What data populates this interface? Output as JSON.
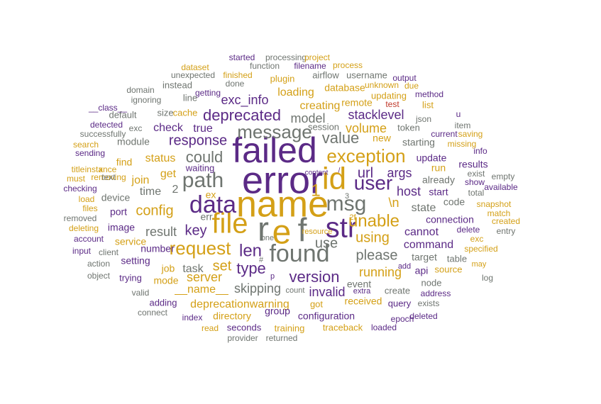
{
  "palette": {
    "purple": "#5b2a86",
    "gold": "#d4a017",
    "gray": "#6f7570",
    "red": "#c0392b"
  },
  "words": [
    {
      "text": "error",
      "color": "purple"
    },
    {
      "text": "failed",
      "color": "purple"
    },
    {
      "text": "name",
      "color": "gold"
    },
    {
      "text": "id",
      "color": "gold"
    },
    {
      "text": "file",
      "color": "gold"
    },
    {
      "text": "r",
      "color": "gray"
    },
    {
      "text": "e",
      "color": "gold"
    },
    {
      "text": "f",
      "color": "gray"
    },
    {
      "text": "str",
      "color": "purple"
    },
    {
      "text": "found",
      "color": "gray"
    },
    {
      "text": "data",
      "color": "purple"
    },
    {
      "text": "path",
      "color": "gray"
    },
    {
      "text": "msg",
      "color": "gray"
    },
    {
      "text": "user",
      "color": "purple"
    },
    {
      "text": "exception",
      "color": "gold"
    },
    {
      "text": "request",
      "color": "gold"
    },
    {
      "text": "message",
      "color": "gray"
    },
    {
      "text": "unable",
      "color": "gold"
    },
    {
      "text": "len",
      "color": "purple"
    },
    {
      "text": "1",
      "color": "gold"
    },
    {
      "text": "deprecated",
      "color": "purple"
    },
    {
      "text": "could",
      "color": "gray"
    },
    {
      "text": "response",
      "color": "purple"
    },
    {
      "text": "value",
      "color": "gray"
    },
    {
      "text": "url",
      "color": "purple"
    },
    {
      "text": "config",
      "color": "gold"
    },
    {
      "text": "key",
      "color": "purple"
    },
    {
      "text": "type",
      "color": "purple"
    },
    {
      "text": "version",
      "color": "purple"
    },
    {
      "text": "use",
      "color": "gray"
    },
    {
      "text": "set",
      "color": "gold"
    },
    {
      "text": "please",
      "color": "gray"
    },
    {
      "text": "using",
      "color": "gold"
    },
    {
      "text": "model",
      "color": "gray"
    },
    {
      "text": "volume",
      "color": "gold"
    },
    {
      "text": "stacklevel",
      "color": "purple"
    },
    {
      "text": "exc_info",
      "color": "purple"
    },
    {
      "text": "\\n",
      "color": "gold"
    },
    {
      "text": "host",
      "color": "purple"
    },
    {
      "text": "args",
      "color": "purple"
    },
    {
      "text": "skipping",
      "color": "gray"
    },
    {
      "text": "result",
      "color": "gray"
    },
    {
      "text": "server",
      "color": "gold"
    },
    {
      "text": "running",
      "color": "gold"
    },
    {
      "text": "cannot",
      "color": "purple"
    },
    {
      "text": "command",
      "color": "purple"
    },
    {
      "text": "state",
      "color": "gray"
    },
    {
      "text": "creating",
      "color": "gold"
    },
    {
      "text": "invalid",
      "color": "purple"
    },
    {
      "text": "status",
      "color": "gold"
    },
    {
      "text": "deprecationwarning",
      "color": "gold"
    },
    {
      "text": "__name__",
      "color": "gold"
    },
    {
      "text": "true",
      "color": "purple"
    },
    {
      "text": "check",
      "color": "purple"
    },
    {
      "text": "get",
      "color": "gold"
    },
    {
      "text": "time",
      "color": "gray"
    },
    {
      "text": "2",
      "color": "gray"
    },
    {
      "text": "connection",
      "color": "purple"
    },
    {
      "text": "join",
      "color": "gold"
    },
    {
      "text": "task",
      "color": "gray"
    },
    {
      "text": "job",
      "color": "gold"
    },
    {
      "text": "new",
      "color": "gold"
    },
    {
      "text": "loading",
      "color": "gold"
    },
    {
      "text": "event",
      "color": "gray"
    },
    {
      "text": "received",
      "color": "gold"
    },
    {
      "text": "configuration",
      "color": "purple"
    },
    {
      "text": "group",
      "color": "purple"
    },
    {
      "text": "port",
      "color": "purple"
    },
    {
      "text": "image",
      "color": "purple"
    },
    {
      "text": "service",
      "color": "gold"
    },
    {
      "text": "setting",
      "color": "purple"
    },
    {
      "text": "mode",
      "color": "gold"
    },
    {
      "text": "find",
      "color": "gold"
    },
    {
      "text": "module",
      "color": "gray"
    },
    {
      "text": "device",
      "color": "gray"
    },
    {
      "text": "err",
      "color": "gray"
    },
    {
      "text": "ex",
      "color": "gold"
    },
    {
      "text": "update",
      "color": "purple"
    },
    {
      "text": "already",
      "color": "gray"
    },
    {
      "text": "start",
      "color": "purple"
    },
    {
      "text": "starting",
      "color": "gray"
    },
    {
      "text": "run",
      "color": "gold"
    },
    {
      "text": "code",
      "color": "gray"
    },
    {
      "text": "target",
      "color": "gray"
    },
    {
      "text": "api",
      "color": "purple"
    },
    {
      "text": "table",
      "color": "gray"
    },
    {
      "text": "source",
      "color": "gold"
    },
    {
      "text": "directory",
      "color": "gold"
    },
    {
      "text": "got",
      "color": "gold"
    },
    {
      "text": "create",
      "color": "gray"
    },
    {
      "text": "node",
      "color": "gray"
    },
    {
      "text": "address",
      "color": "purple"
    },
    {
      "text": "query",
      "color": "purple"
    },
    {
      "text": "exists",
      "color": "gray"
    },
    {
      "text": "epoch",
      "color": "purple"
    },
    {
      "text": "deleted",
      "color": "purple"
    },
    {
      "text": "loaded",
      "color": "purple"
    },
    {
      "text": "traceback",
      "color": "gold"
    },
    {
      "text": "training",
      "color": "gold"
    },
    {
      "text": "seconds",
      "color": "purple"
    },
    {
      "text": "read",
      "color": "gold"
    },
    {
      "text": "index",
      "color": "purple"
    },
    {
      "text": "adding",
      "color": "purple"
    },
    {
      "text": "connect",
      "color": "gray"
    },
    {
      "text": "valid",
      "color": "gray"
    },
    {
      "text": "trying",
      "color": "purple"
    },
    {
      "text": "object",
      "color": "gray"
    },
    {
      "text": "action",
      "color": "gray"
    },
    {
      "text": "client",
      "color": "gray"
    },
    {
      "text": "input",
      "color": "purple"
    },
    {
      "text": "account",
      "color": "purple"
    },
    {
      "text": "deleting",
      "color": "gold"
    },
    {
      "text": "removed",
      "color": "gray"
    },
    {
      "text": "files",
      "color": "gold"
    },
    {
      "text": "load",
      "color": "gold"
    },
    {
      "text": "checking",
      "color": "purple"
    },
    {
      "text": "must",
      "color": "gold"
    },
    {
      "text": "title",
      "color": "gold"
    },
    {
      "text": "instance",
      "color": "gold"
    },
    {
      "text": "removing",
      "color": "gold"
    },
    {
      "text": "sending",
      "color": "purple"
    },
    {
      "text": "search",
      "color": "gold"
    },
    {
      "text": "successfully",
      "color": "gray"
    },
    {
      "text": "detected",
      "color": "purple"
    },
    {
      "text": "default",
      "color": "gray"
    },
    {
      "text": "__class__",
      "color": "purple"
    },
    {
      "text": "ignoring",
      "color": "gray"
    },
    {
      "text": "domain",
      "color": "gray"
    },
    {
      "text": "unexpected",
      "color": "gray"
    },
    {
      "text": "dataset",
      "color": "gold"
    },
    {
      "text": "started",
      "color": "purple"
    },
    {
      "text": "processing",
      "color": "gray"
    },
    {
      "text": "project",
      "color": "gold"
    },
    {
      "text": "function",
      "color": "gray"
    },
    {
      "text": "filename",
      "color": "purple"
    },
    {
      "text": "process",
      "color": "gold"
    },
    {
      "text": "finished",
      "color": "gold"
    },
    {
      "text": "airflow",
      "color": "gray"
    },
    {
      "text": "username",
      "color": "gray"
    },
    {
      "text": "output",
      "color": "purple"
    },
    {
      "text": "done",
      "color": "gray"
    },
    {
      "text": "plugin",
      "color": "gold"
    },
    {
      "text": "unknown",
      "color": "gold"
    },
    {
      "text": "due",
      "color": "gold"
    },
    {
      "text": "instead",
      "color": "gray"
    },
    {
      "text": "getting",
      "color": "purple"
    },
    {
      "text": "database",
      "color": "gold"
    },
    {
      "text": "method",
      "color": "purple"
    },
    {
      "text": "line",
      "color": "gray"
    },
    {
      "text": "updating",
      "color": "gold"
    },
    {
      "text": "test",
      "color": "red"
    },
    {
      "text": "list",
      "color": "gold"
    },
    {
      "text": "size",
      "color": "gray"
    },
    {
      "text": "cache",
      "color": "gold"
    },
    {
      "text": "remote",
      "color": "gold"
    },
    {
      "text": "json",
      "color": "gray"
    },
    {
      "text": "u",
      "color": "purple"
    },
    {
      "text": "exc",
      "color": "gray"
    },
    {
      "text": "session",
      "color": "gray"
    },
    {
      "text": "token",
      "color": "gray"
    },
    {
      "text": "item",
      "color": "gray"
    },
    {
      "text": "current",
      "color": "purple"
    },
    {
      "text": "saving",
      "color": "gold"
    },
    {
      "text": "missing",
      "color": "gold"
    },
    {
      "text": "info",
      "color": "purple"
    },
    {
      "text": "results",
      "color": "purple"
    },
    {
      "text": "x",
      "color": "gold"
    },
    {
      "text": "text",
      "color": "gray"
    },
    {
      "text": "waiting",
      "color": "purple"
    },
    {
      "text": "exist",
      "color": "gray"
    },
    {
      "text": "empty",
      "color": "gray"
    },
    {
      "text": "show",
      "color": "purple"
    },
    {
      "text": "available",
      "color": "purple"
    },
    {
      "text": "total",
      "color": "gray"
    },
    {
      "text": "snapshot",
      "color": "gold"
    },
    {
      "text": "match",
      "color": "gold"
    },
    {
      "text": "created",
      "color": "gold"
    },
    {
      "text": "entry",
      "color": "gray"
    },
    {
      "text": "delete",
      "color": "purple"
    },
    {
      "text": "exc",
      "color": "gold"
    },
    {
      "text": "specified",
      "color": "gold"
    },
    {
      "text": "may",
      "color": "gold"
    },
    {
      "text": "log",
      "color": "gray"
    },
    {
      "text": "extra",
      "color": "purple"
    },
    {
      "text": "count",
      "color": "gray"
    },
    {
      "text": "add",
      "color": "purple"
    },
    {
      "text": "#",
      "color": "gray"
    },
    {
      "text": "p",
      "color": "purple"
    },
    {
      "text": "one",
      "color": "gray"
    },
    {
      "text": "resource",
      "color": "gold"
    },
    {
      "text": "2f",
      "color": "gold"
    },
    {
      "text": "3",
      "color": "gray"
    },
    {
      "text": "/",
      "color": "purple"
    },
    {
      "text": "content",
      "color": "purple"
    },
    {
      "text": "number",
      "color": "purple"
    },
    {
      "text": "returned",
      "color": "gray"
    },
    {
      "text": "provider",
      "color": "gray"
    }
  ]
}
